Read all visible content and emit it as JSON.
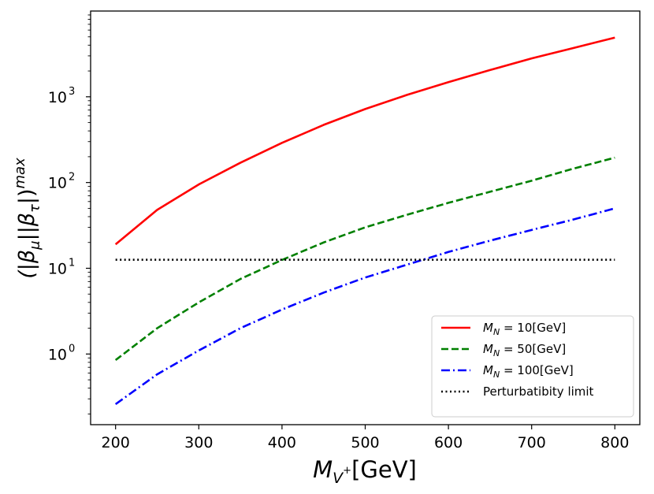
{
  "chart_data": {
    "type": "line",
    "xlabel": {
      "main": "M",
      "sub": "V",
      "subsup": "+",
      "unit": "[GeV]"
    },
    "ylabel": {
      "main": "(|β",
      "sub1": "μ",
      "mid": "||β",
      "sub2": "τ",
      "end": "|)",
      "sup": "max"
    },
    "xlim": [
      170,
      830
    ],
    "ylim": [
      0.15,
      10000
    ],
    "yscale": "log",
    "x_ticks": [
      {
        "value": 200,
        "label": "200"
      },
      {
        "value": 300,
        "label": "300"
      },
      {
        "value": 400,
        "label": "400"
      },
      {
        "value": 500,
        "label": "500"
      },
      {
        "value": 600,
        "label": "600"
      },
      {
        "value": 700,
        "label": "700"
      },
      {
        "value": 800,
        "label": "800"
      }
    ],
    "y_ticks": [
      {
        "value": 1,
        "base": "10",
        "exp": "0"
      },
      {
        "value": 10,
        "base": "10",
        "exp": "1"
      },
      {
        "value": 100,
        "base": "10",
        "exp": "2"
      },
      {
        "value": 1000,
        "base": "10",
        "exp": "3"
      }
    ],
    "grid": false,
    "legend_position": "lower-right",
    "x": [
      200,
      250,
      300,
      350,
      400,
      450,
      500,
      550,
      600,
      650,
      700,
      750,
      800
    ],
    "series": [
      {
        "name": "M_N = 10[GeV]",
        "legend": {
          "sym": "M",
          "sub": "N",
          "rest": " = 10[GeV]"
        },
        "color": "#ff0000",
        "dash": "solid",
        "values": [
          19,
          48,
          95,
          170,
          290,
          470,
          720,
          1050,
          1480,
          2050,
          2800,
          3700,
          4900
        ]
      },
      {
        "name": "M_N = 50[GeV]",
        "legend": {
          "sym": "M",
          "sub": "N",
          "rest": " = 50[GeV]"
        },
        "color": "#008000",
        "dash": "dashed",
        "values": [
          0.85,
          2.0,
          4.0,
          7.5,
          12.5,
          20,
          30,
          42,
          58,
          78,
          105,
          145,
          195
        ]
      },
      {
        "name": "M_N = 100[GeV]",
        "legend": {
          "sym": "M",
          "sub": "N",
          "rest": " = 100[GeV]"
        },
        "color": "#0000ff",
        "dash": "dashdot",
        "values": [
          0.26,
          0.58,
          1.1,
          2.0,
          3.3,
          5.2,
          7.8,
          11,
          15.5,
          21,
          28,
          37,
          50
        ]
      },
      {
        "name": "Perturbatibity limit",
        "legend": {
          "sym": "",
          "sub": "",
          "rest": "Perturbatibity limit"
        },
        "color": "#000000",
        "dash": "dotted",
        "values": [
          12.57,
          12.57,
          12.57,
          12.57,
          12.57,
          12.57,
          12.57,
          12.57,
          12.57,
          12.57,
          12.57,
          12.57,
          12.57
        ]
      }
    ]
  }
}
